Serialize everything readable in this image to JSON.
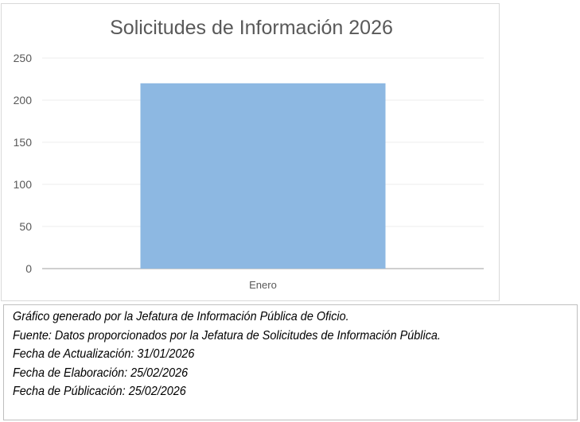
{
  "chart_data": {
    "type": "bar",
    "title": "Solicitudes de Información 2026",
    "categories": [
      "Enero"
    ],
    "values": [
      220
    ],
    "xlabel": "",
    "ylabel": "",
    "ylim": [
      0,
      250
    ],
    "yticks": [
      0,
      50,
      100,
      150,
      200,
      250
    ],
    "grid": true,
    "bar_color": "#8db8e2"
  },
  "footer": {
    "lines": [
      "Gráfico generado por la Jefatura de Información Pública de Oficio.",
      "Fuente: Datos proporcionados por la Jefatura de Solicitudes de Información Pública.",
      "Fecha de Actualización: 31/01/2026",
      "Fecha de Elaboración: 25/02/2026",
      "Fecha de Públicación: 25/02/2026"
    ]
  }
}
